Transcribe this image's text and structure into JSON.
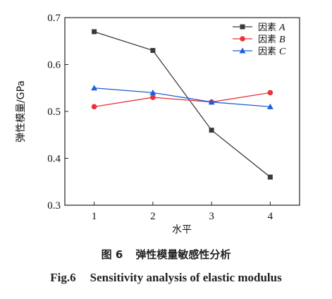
{
  "chart_data": {
    "type": "line",
    "x": [
      1,
      2,
      3,
      4
    ],
    "xticks": [
      "1",
      "2",
      "3",
      "4"
    ],
    "yticks": [
      "0.3",
      "0.4",
      "0.5",
      "0.6",
      "0.7"
    ],
    "xlabel": "水平",
    "ylabel": "弹性模量/GPa",
    "xlim": [
      0.5,
      4.5
    ],
    "ylim": [
      0.3,
      0.7
    ],
    "legend_position": "top-right",
    "grid": false,
    "series": [
      {
        "name": "因素",
        "var": "A",
        "color": "#3a3a3a",
        "marker": "square",
        "values": [
          0.67,
          0.63,
          0.46,
          0.36
        ]
      },
      {
        "name": "因素",
        "var": "B",
        "color": "#e8333a",
        "marker": "circle",
        "values": [
          0.51,
          0.53,
          0.52,
          0.54
        ]
      },
      {
        "name": "因素",
        "var": "C",
        "color": "#1f5fd6",
        "marker": "triangle",
        "values": [
          0.55,
          0.54,
          0.52,
          0.51
        ]
      }
    ]
  },
  "caption": {
    "cn_label": "图 6",
    "cn_text": "弹性模量敏感性分析",
    "en_label": "Fig.6",
    "en_text": "Sensitivity analysis of elastic modulus"
  }
}
